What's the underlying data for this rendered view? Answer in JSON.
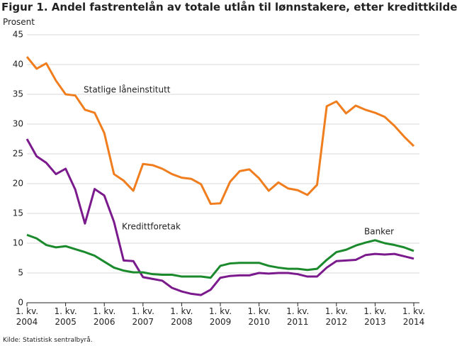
{
  "chart_data": {
    "type": "line",
    "title": "Figur 1. Andel fastrentelån av totale utlån til lønnstakere, etter kredittkilde",
    "y_label": "Prosent",
    "source": "Kilde: Statistisk sentralbyrå.",
    "categories": [
      "1. kv.\n2004",
      null,
      null,
      null,
      "1. kv.\n2005",
      null,
      null,
      null,
      "1. kv.\n2006",
      null,
      null,
      null,
      "1. kv.\n2007",
      null,
      null,
      null,
      "1. kv.\n2008",
      null,
      null,
      null,
      "1. kv.\n2009",
      null,
      null,
      null,
      "1. kv.\n2010",
      null,
      null,
      null,
      "1. kv.\n2011",
      null,
      null,
      null,
      "1. kv.\n2012",
      null,
      null,
      null,
      "1. kv.\n2013",
      null,
      null,
      null,
      "1. kv.\n2014"
    ],
    "series": [
      {
        "name": "Statlige låneinstitutt",
        "color": "#f07d1e",
        "values": [
          41.3,
          39.3,
          40.2,
          37.3,
          35.0,
          34.8,
          32.4,
          31.9,
          28.5,
          21.6,
          20.5,
          18.8,
          23.3,
          23.1,
          22.5,
          21.6,
          21.0,
          20.8,
          19.9,
          16.6,
          16.7,
          20.3,
          22.1,
          22.4,
          20.9,
          18.8,
          20.2,
          19.2,
          18.9,
          18.1,
          19.8,
          33.0,
          33.8,
          31.8,
          33.1,
          32.4,
          31.9,
          31.2,
          29.7,
          27.9,
          26.3
        ]
      },
      {
        "name": "Kredittforetak",
        "color": "#7b1a8c",
        "values": [
          27.5,
          24.6,
          23.5,
          21.6,
          22.5,
          19.0,
          13.3,
          19.1,
          18.0,
          13.6,
          7.1,
          7.0,
          4.3,
          4.0,
          3.7,
          2.5,
          1.9,
          1.5,
          1.3,
          2.2,
          4.2,
          4.5,
          4.6,
          4.6,
          5.0,
          4.9,
          5.0,
          5.0,
          4.8,
          4.4,
          4.4,
          5.9,
          7.0,
          7.1,
          7.2,
          8.0,
          8.2,
          8.1,
          8.2,
          7.8,
          7.4
        ]
      },
      {
        "name": "Banker",
        "color": "#1a8a2c",
        "values": [
          11.4,
          10.8,
          9.7,
          9.3,
          9.5,
          9.0,
          8.5,
          7.9,
          6.9,
          5.9,
          5.4,
          5.1,
          5.1,
          4.8,
          4.7,
          4.7,
          4.4,
          4.4,
          4.4,
          4.2,
          6.2,
          6.6,
          6.7,
          6.7,
          6.7,
          6.2,
          5.9,
          5.7,
          5.7,
          5.5,
          5.7,
          7.2,
          8.5,
          8.9,
          9.6,
          10.1,
          10.5,
          10.0,
          9.7,
          9.3,
          8.7
        ]
      }
    ],
    "ylim": [
      0,
      45
    ],
    "yticks": [
      0,
      5,
      10,
      15,
      20,
      25,
      30,
      35,
      40,
      45
    ],
    "grid": true
  }
}
